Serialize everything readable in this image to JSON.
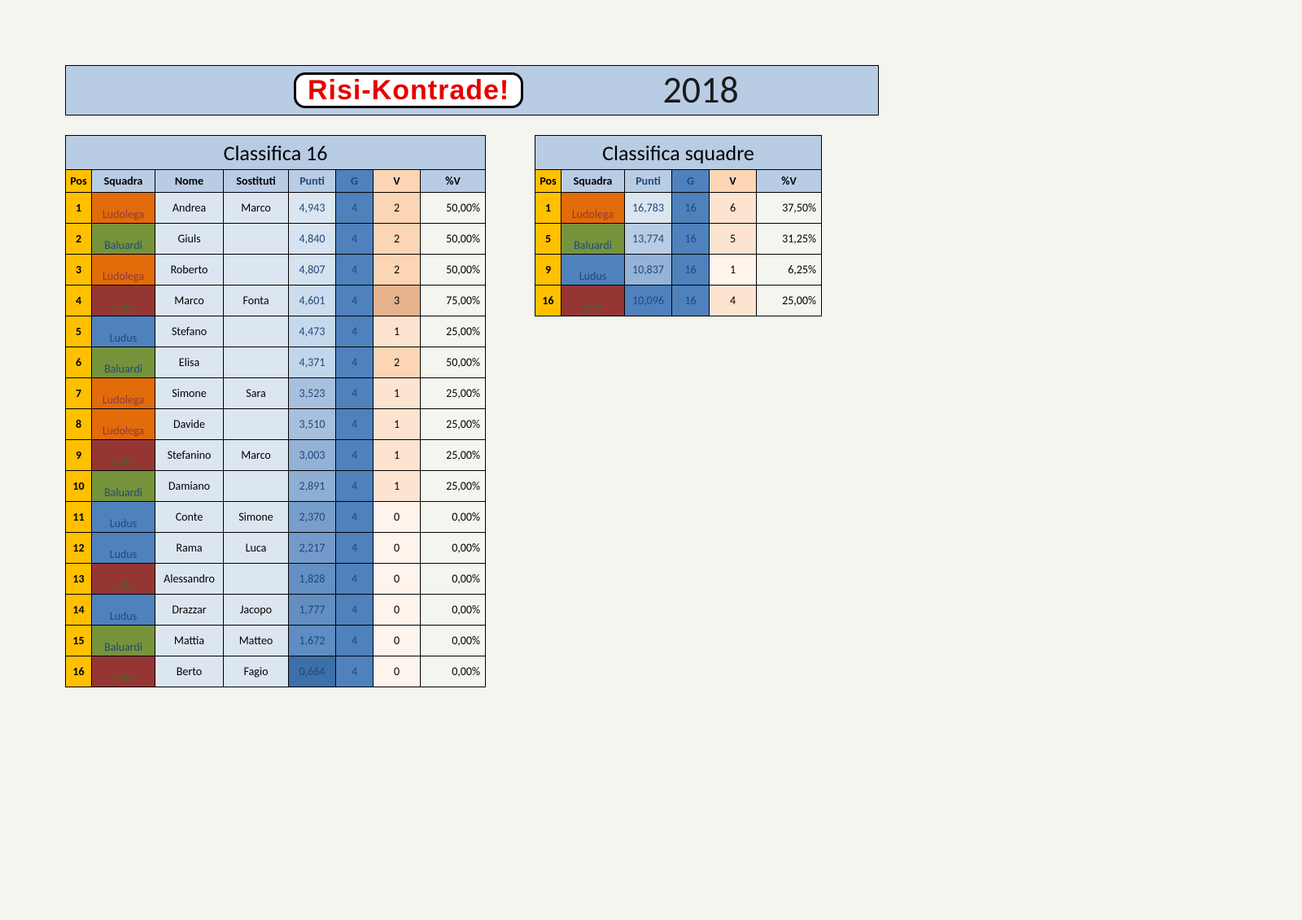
{
  "banner": {
    "logo_text": "Risi-Kontrade!",
    "year": "2018",
    "bg": "#b8cce4"
  },
  "squad_colors": {
    "Ludolega": {
      "bg": "#e26b0a",
      "fg": "#963634"
    },
    "Baluardi": {
      "bg": "#76933c",
      "fg": "#1f497d"
    },
    "jolly": {
      "bg": "#963634",
      "fg": "#4f6228"
    },
    "Ludus": {
      "bg": "#4f81bd",
      "fg": "#1f497d"
    }
  },
  "punti_gradient": {
    "colors": [
      "#f8696b",
      "#f98370",
      "#fa9d75",
      "#fcb77a",
      "#fdd17f",
      "#feeb84",
      "#e0e383",
      "#c1da82",
      "#a2d07f",
      "#83c77d",
      "#63be7b"
    ],
    "min": 0.664,
    "max": 4.943
  },
  "players": {
    "title": "Classifica 16",
    "columns": [
      "Pos",
      "Squadra",
      "Nome",
      "Sostituti",
      "Punti",
      "G",
      "V",
      "%V"
    ],
    "rows": [
      {
        "pos": "1",
        "squad": "Ludolega",
        "nome": "Andrea",
        "sost": "Marco",
        "punti": "4,943",
        "punti_n": 4.943,
        "g": "4",
        "v": "2",
        "pv": "50,00%",
        "v_bg": "#fcd5b4"
      },
      {
        "pos": "2",
        "squad": "Baluardi",
        "nome": "Giuls",
        "sost": "",
        "punti": "4,840",
        "punti_n": 4.84,
        "g": "4",
        "v": "2",
        "pv": "50,00%",
        "v_bg": "#fcd5b4"
      },
      {
        "pos": "3",
        "squad": "Ludolega",
        "nome": "Roberto",
        "sost": "",
        "punti": "4,807",
        "punti_n": 4.807,
        "g": "4",
        "v": "2",
        "pv": "50,00%",
        "v_bg": "#fcd5b4"
      },
      {
        "pos": "4",
        "squad": "jolly",
        "nome": "Marco",
        "sost": "Fonta",
        "punti": "4,601",
        "punti_n": 4.601,
        "g": "4",
        "v": "3",
        "pv": "75,00%",
        "v_bg": "#e6b28c"
      },
      {
        "pos": "5",
        "squad": "Ludus",
        "nome": "Stefano",
        "sost": "",
        "punti": "4,473",
        "punti_n": 4.473,
        "g": "4",
        "v": "1",
        "pv": "25,00%",
        "v_bg": "#fde4d0"
      },
      {
        "pos": "6",
        "squad": "Baluardi",
        "nome": "Elisa",
        "sost": "",
        "punti": "4,371",
        "punti_n": 4.371,
        "g": "4",
        "v": "2",
        "pv": "50,00%",
        "v_bg": "#fcd5b4"
      },
      {
        "pos": "7",
        "squad": "Ludolega",
        "nome": "Simone",
        "sost": "Sara",
        "punti": "3,523",
        "punti_n": 3.523,
        "g": "4",
        "v": "1",
        "pv": "25,00%",
        "v_bg": "#fde4d0"
      },
      {
        "pos": "8",
        "squad": "Ludolega",
        "nome": "Davide",
        "sost": "",
        "punti": "3,510",
        "punti_n": 3.51,
        "g": "4",
        "v": "1",
        "pv": "25,00%",
        "v_bg": "#fde4d0"
      },
      {
        "pos": "9",
        "squad": "jolly",
        "nome": "Stefanino",
        "sost": "Marco",
        "punti": "3,003",
        "punti_n": 3.003,
        "g": "4",
        "v": "1",
        "pv": "25,00%",
        "v_bg": "#fde4d0"
      },
      {
        "pos": "10",
        "squad": "Baluardi",
        "nome": "Damiano",
        "sost": "",
        "punti": "2,891",
        "punti_n": 2.891,
        "g": "4",
        "v": "1",
        "pv": "25,00%",
        "v_bg": "#fde4d0"
      },
      {
        "pos": "11",
        "squad": "Ludus",
        "nome": "Conte",
        "sost": "Simone",
        "punti": "2,370",
        "punti_n": 2.37,
        "g": "4",
        "v": "0",
        "pv": "0,00%",
        "v_bg": "#fef4ec"
      },
      {
        "pos": "12",
        "squad": "Ludus",
        "nome": "Rama",
        "sost": "Luca",
        "punti": "2,217",
        "punti_n": 2.217,
        "g": "4",
        "v": "0",
        "pv": "0,00%",
        "v_bg": "#fef4ec"
      },
      {
        "pos": "13",
        "squad": "jolly",
        "nome": "Alessandro",
        "sost": "",
        "punti": "1,828",
        "punti_n": 1.828,
        "g": "4",
        "v": "0",
        "pv": "0,00%",
        "v_bg": "#fef4ec"
      },
      {
        "pos": "14",
        "squad": "Ludus",
        "nome": "Drazzar",
        "sost": "Jacopo",
        "punti": "1,777",
        "punti_n": 1.777,
        "g": "4",
        "v": "0",
        "pv": "0,00%",
        "v_bg": "#fef4ec"
      },
      {
        "pos": "15",
        "squad": "Baluardi",
        "nome": "Mattia",
        "sost": "Matteo",
        "punti": "1,672",
        "punti_n": 1.672,
        "g": "4",
        "v": "0",
        "pv": "0,00%",
        "v_bg": "#fef4ec"
      },
      {
        "pos": "16",
        "squad": "jolly",
        "nome": "Berto",
        "sost": "Fagio",
        "punti": "0,664",
        "punti_n": 0.664,
        "g": "4",
        "v": "0",
        "pv": "0,00%",
        "v_bg": "#fef4ec"
      }
    ]
  },
  "teams": {
    "title": "Classifica squadre",
    "columns": [
      "Pos",
      "Squadra",
      "Punti",
      "G",
      "V",
      "%V"
    ],
    "rows": [
      {
        "pos": "1",
        "squad": "Ludolega",
        "punti": "16,783",
        "g": "16",
        "v": "6",
        "pv": "37,50%",
        "punti_bg": "#dce6f1",
        "v_bg": "#fde4d0"
      },
      {
        "pos": "5",
        "squad": "Baluardi",
        "punti": "13,774",
        "g": "16",
        "v": "5",
        "pv": "31,25%",
        "punti_bg": "#b8cce4",
        "v_bg": "#fde4d0"
      },
      {
        "pos": "9",
        "squad": "Ludus",
        "punti": "10,837",
        "g": "16",
        "v": "1",
        "pv": "6,25%",
        "punti_bg": "#95b3d7",
        "v_bg": "#fef4ec"
      },
      {
        "pos": "16",
        "squad": "jolly",
        "punti": "10,096",
        "g": "16",
        "v": "4",
        "pv": "25,00%",
        "punti_bg": "#4f81bd",
        "v_bg": "#fde4d0"
      }
    ]
  }
}
